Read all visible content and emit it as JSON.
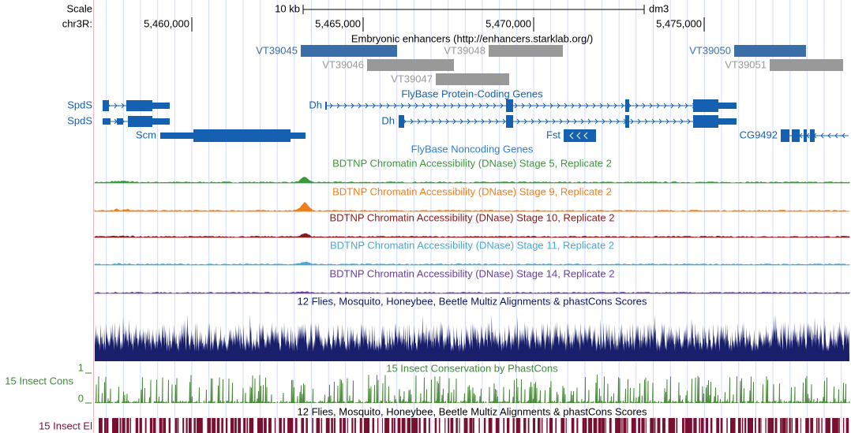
{
  "ruler": {
    "scale_label": "Scale",
    "scale_bar": "10 kb",
    "assembly": "dm3",
    "chrom": "chr3R:",
    "ticks": [
      "5,460,000",
      "5,465,000",
      "5,470,000",
      "5,475,000"
    ]
  },
  "tracks": {
    "enhancers": {
      "title": "Embryonic enhancers (http://enhancers.starklab.org/)",
      "items": [
        "VT39045",
        "VT39048",
        "VT39046",
        "VT39047",
        "VT39050",
        "VT39051"
      ]
    },
    "genes": {
      "title": "FlyBase Protein-Coding Genes",
      "items": [
        "SpdS",
        "SpdS",
        "Scm",
        "Dh",
        "Dh",
        "Fst",
        "CG9492"
      ]
    },
    "noncoding": {
      "title": "FlyBase Noncoding Genes"
    },
    "dnase": [
      "BDTNP Chromatin Accessibility (DNase) Stage 5, Replicate 2",
      "BDTNP Chromatin Accessibility (DNase) Stage 9, Replicate 2",
      "BDTNP Chromatin Accessibility (DNase) Stage 10, Replicate 2",
      "BDTNP Chromatin Accessibility (DNase) Stage 11, Replicate 2",
      "BDTNP Chromatin Accessibility (DNase) Stage 14, Replicate 2"
    ],
    "multiz": {
      "title": "12 Flies, Mosquito, Honeybee, Beetle Multiz Alignments & phastCons Scores"
    },
    "cons": {
      "title": "15 Insect Conservation by PhastCons",
      "side_label": "15 Insect Cons",
      "scale_max": "1",
      "scale_min": "0"
    },
    "elements": {
      "title": "12 Flies, Mosquito, Honeybee, Beetle Multiz Alignments & phastCons Scores",
      "side_label": "15 Insect El"
    }
  }
}
